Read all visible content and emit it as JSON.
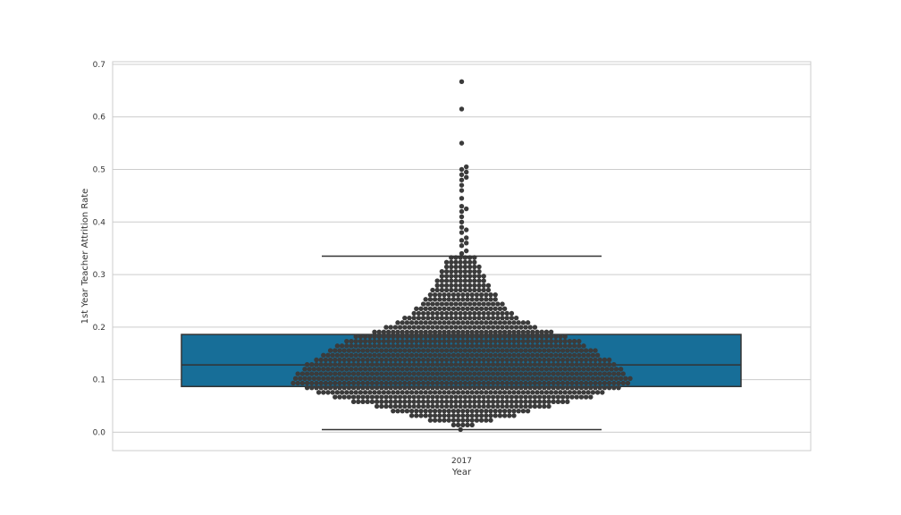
{
  "chart_data": {
    "type": "box+swarm",
    "title": "",
    "xlabel": "Year",
    "ylabel": "1st Year Teacher Attrition Rate",
    "categories": [
      "2017"
    ],
    "ylim": [
      -0.035,
      0.705
    ],
    "yticks": [
      "0.0",
      "0.1",
      "0.2",
      "0.3",
      "0.4",
      "0.5",
      "0.6",
      "0.7"
    ],
    "grid": true,
    "box": {
      "category": "2017",
      "q1": 0.087,
      "median": 0.128,
      "q3": 0.186,
      "whisker_low": 0.005,
      "whisker_high": 0.335,
      "fill": "#176e98",
      "line": "#333333"
    },
    "outliers": [
      0.34,
      0.345,
      0.355,
      0.36,
      0.365,
      0.37,
      0.38,
      0.385,
      0.39,
      0.4,
      0.41,
      0.42,
      0.425,
      0.43,
      0.445,
      0.46,
      0.47,
      0.48,
      0.485,
      0.49,
      0.495,
      0.5,
      0.505,
      0.55,
      0.615,
      0.667
    ],
    "swarm_color": "#3b3b3b",
    "swarm_density_profile": [
      [
        0.005,
        1
      ],
      [
        0.015,
        6
      ],
      [
        0.025,
        16
      ],
      [
        0.035,
        26
      ],
      [
        0.045,
        34
      ],
      [
        0.055,
        44
      ],
      [
        0.065,
        54
      ],
      [
        0.075,
        62
      ],
      [
        0.085,
        68
      ],
      [
        0.095,
        74
      ],
      [
        0.105,
        72
      ],
      [
        0.115,
        70
      ],
      [
        0.125,
        68
      ],
      [
        0.135,
        66
      ],
      [
        0.145,
        60
      ],
      [
        0.155,
        58
      ],
      [
        0.165,
        54
      ],
      [
        0.175,
        50
      ],
      [
        0.185,
        44
      ],
      [
        0.195,
        36
      ],
      [
        0.205,
        30
      ],
      [
        0.215,
        26
      ],
      [
        0.225,
        22
      ],
      [
        0.235,
        20
      ],
      [
        0.245,
        18
      ],
      [
        0.255,
        16
      ],
      [
        0.265,
        14
      ],
      [
        0.275,
        12
      ],
      [
        0.285,
        12
      ],
      [
        0.295,
        10
      ],
      [
        0.305,
        9
      ],
      [
        0.315,
        8
      ],
      [
        0.325,
        7
      ],
      [
        0.335,
        5
      ]
    ],
    "colors": {
      "grid": "#cccccc",
      "frame": "#cccccc",
      "text": "#333333"
    }
  }
}
